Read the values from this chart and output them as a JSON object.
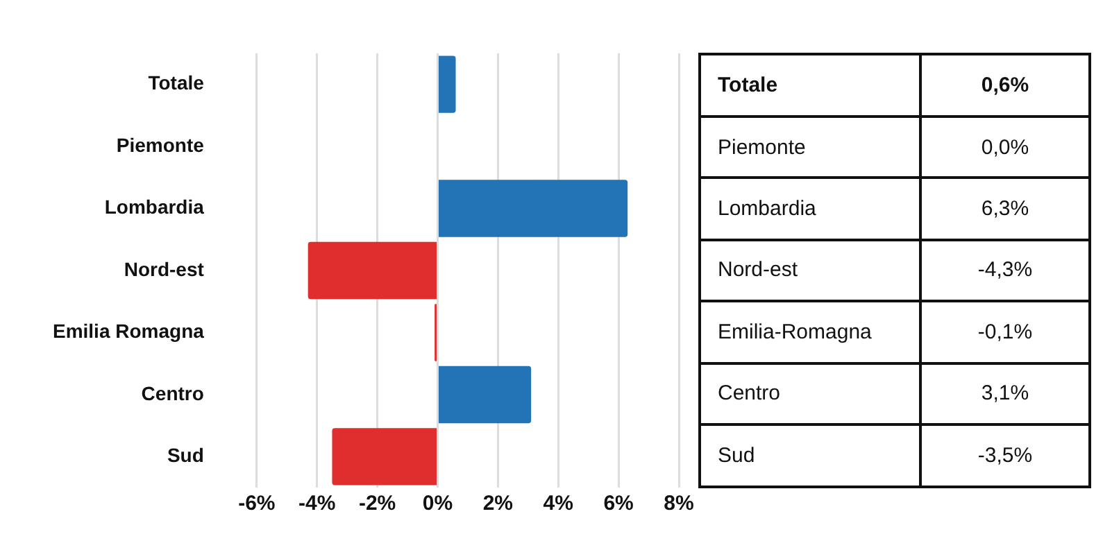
{
  "chart_data": {
    "type": "bar",
    "orientation": "horizontal",
    "categories": [
      "Totale",
      "Piemonte",
      "Lombardia",
      "Nord-est",
      "Emilia Romagna",
      "Centro",
      "Sud"
    ],
    "values": [
      0.6,
      0.0,
      6.3,
      -4.3,
      -0.1,
      3.1,
      -3.5
    ],
    "colors": [
      "#2274b6",
      "#2274b6",
      "#2274b6",
      "#e02e2e",
      "#e02e2e",
      "#2274b6",
      "#e02e2e"
    ],
    "value_labels": [
      "0,6%",
      "0,0%",
      "6,3%",
      "-4,3%",
      "-0,1%",
      "3,1%",
      "-3,5%"
    ],
    "annotations": [
      "Totale",
      "Piemonte",
      "Lombardia",
      "Nord-est",
      "Emilia-Romagna",
      "Centro",
      "Sud"
    ],
    "xlim": [
      -6,
      8
    ],
    "xticks": [
      {
        "value": -6,
        "label": "-6%"
      },
      {
        "value": -4,
        "label": "-4%"
      },
      {
        "value": -2,
        "label": "-2%"
      },
      {
        "value": 0,
        "label": "0%"
      },
      {
        "value": 2,
        "label": "2%"
      },
      {
        "value": 4,
        "label": "4%"
      },
      {
        "value": 6,
        "label": "6%"
      },
      {
        "value": 8,
        "label": "8%"
      }
    ],
    "grid": "x"
  }
}
